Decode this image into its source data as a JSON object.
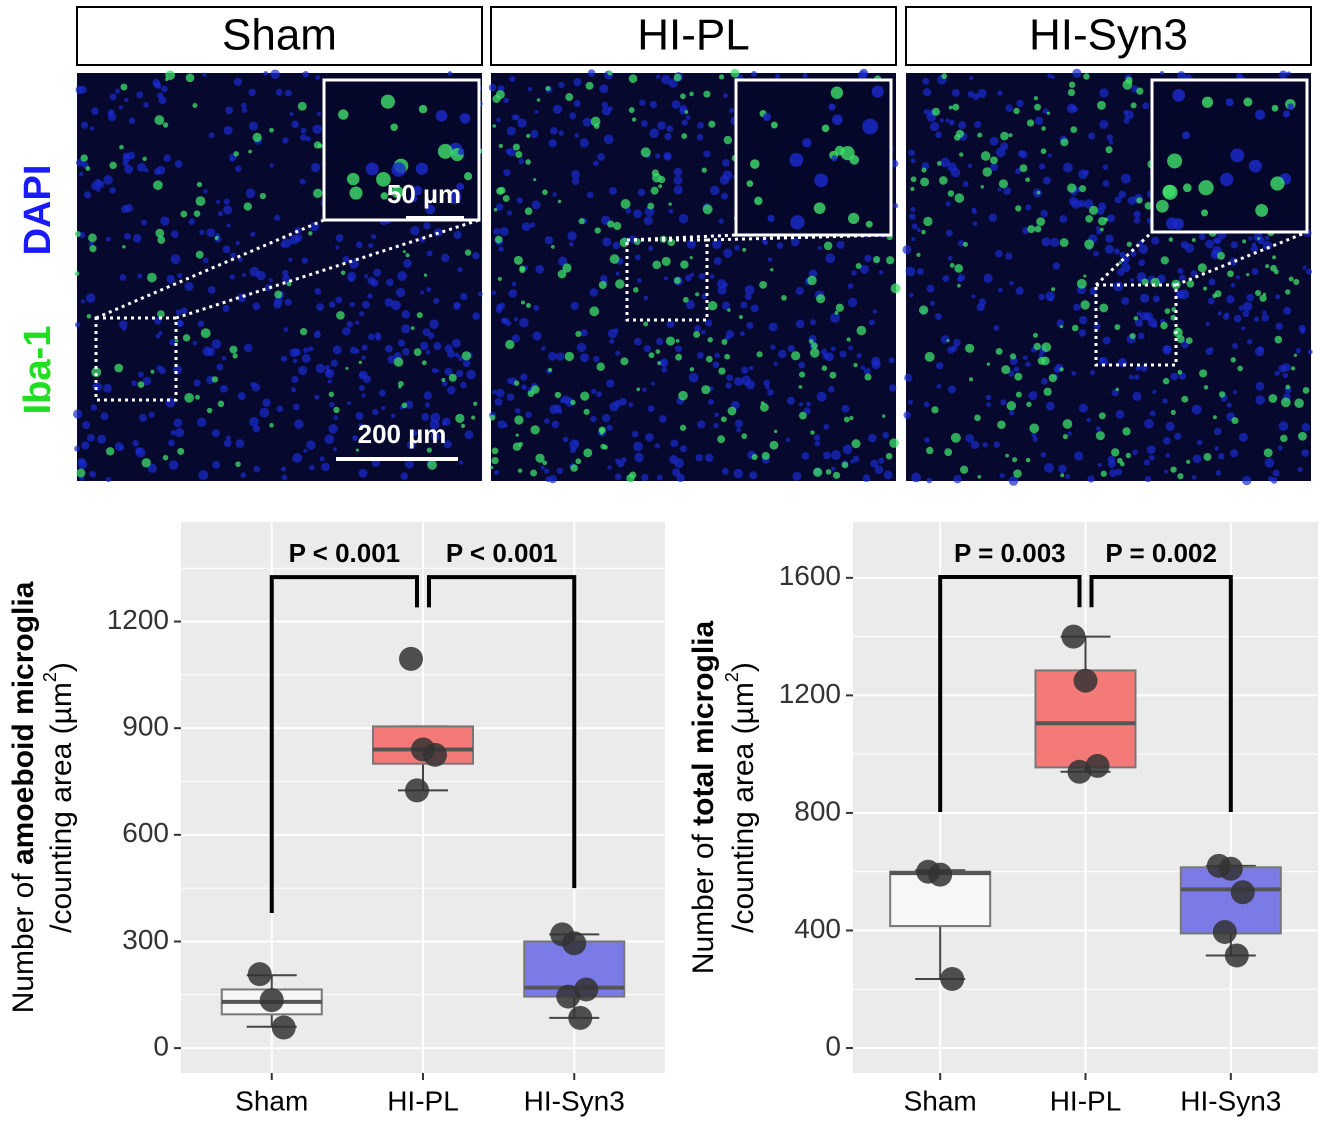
{
  "panels": {
    "titles": [
      "Sham",
      "HI-PL",
      "HI-Syn3"
    ],
    "channel_labels": [
      "Iba-1",
      "DAPI"
    ],
    "scale_bars": [
      "50 µm",
      "200 µm"
    ]
  },
  "chart_data": [
    {
      "type": "box",
      "ylabel": [
        "Number of ",
        "amoeboid microglia",
        "/counting area (µm",
        "2",
        ")"
      ],
      "categories": [
        "Sham",
        "HI-PL",
        "HI-Syn3"
      ],
      "colors": [
        "#f7f7f7",
        "#f47a78",
        "#7b7be8"
      ],
      "boxes": [
        {
          "low": 60,
          "q1": 95,
          "median": 130,
          "q3": 165,
          "high": 205,
          "points": [
            208,
            135,
            58
          ]
        },
        {
          "low": 725,
          "q1": 800,
          "median": 840,
          "q3": 905,
          "high": 905,
          "points": [
            1095,
            840,
            825,
            725
          ]
        },
        {
          "low": 85,
          "q1": 145,
          "median": 170,
          "q3": 300,
          "high": 320,
          "points": [
            320,
            295,
            165,
            145,
            85
          ]
        }
      ],
      "brackets": [
        {
          "label": "P < 0.001",
          "from": 0,
          "to": 1,
          "top": 1325,
          "ends": [
            380,
            1240
          ]
        },
        {
          "label": "P < 0.001",
          "from": 1,
          "to": 2,
          "top": 1325,
          "ends": [
            1240,
            450
          ]
        }
      ],
      "ylim": [
        -70,
        1480
      ],
      "yticks": [
        0,
        300,
        600,
        900,
        1200
      ],
      "minor_yticks": [
        150,
        450,
        750,
        1050,
        1350
      ],
      "grid": true
    },
    {
      "type": "box",
      "ylabel": [
        "Number of ",
        "total microglia",
        "/counting area (µm",
        "2",
        ")"
      ],
      "categories": [
        "Sham",
        "HI-PL",
        "HI-Syn3"
      ],
      "colors": [
        "#f7f7f7",
        "#f47a78",
        "#7b7be8"
      ],
      "boxes": [
        {
          "low": 235,
          "q1": 415,
          "median": 595,
          "q3": 600,
          "high": 605,
          "points": [
            600,
            590,
            235
          ]
        },
        {
          "low": 940,
          "q1": 955,
          "median": 1105,
          "q3": 1285,
          "high": 1400,
          "points": [
            1400,
            1250,
            960,
            940
          ]
        },
        {
          "low": 315,
          "q1": 390,
          "median": 540,
          "q3": 615,
          "high": 620,
          "points": [
            620,
            610,
            530,
            395,
            315
          ]
        }
      ],
      "brackets": [
        {
          "label": "P = 0.003",
          "from": 0,
          "to": 1,
          "top": 1603,
          "ends": [
            803,
            1500
          ]
        },
        {
          "label": "P = 0.002",
          "from": 1,
          "to": 2,
          "top": 1603,
          "ends": [
            1500,
            803
          ]
        }
      ],
      "ylim": [
        -85,
        1790
      ],
      "yticks": [
        0,
        400,
        800,
        1200,
        1600
      ],
      "minor_yticks": [
        200,
        600,
        1000,
        1400
      ],
      "grid": true
    }
  ]
}
